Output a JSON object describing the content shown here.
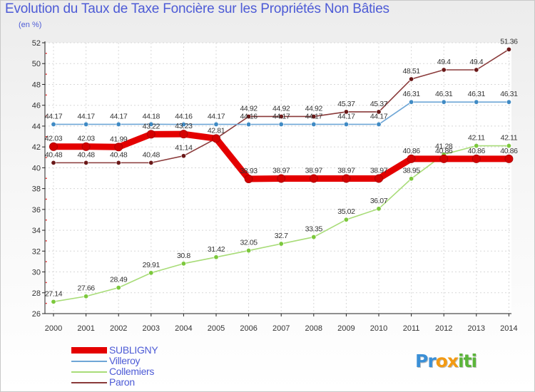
{
  "chart_data": {
    "type": "line",
    "title": "Evolution du Taux de Taxe Foncière sur les Propriétés Non Bâties",
    "subtitle": "(en %)",
    "xlabel": "",
    "ylabel": "(en %)",
    "categories": [
      "2000",
      "2001",
      "2002",
      "2003",
      "2004",
      "2005",
      "2006",
      "2007",
      "2008",
      "2009",
      "2010",
      "2011",
      "2012",
      "2013",
      "2014"
    ],
    "ylim": [
      26,
      52
    ],
    "yticks": [
      26,
      28,
      30,
      32,
      34,
      36,
      38,
      40,
      42,
      44,
      46,
      48,
      50,
      52
    ],
    "grid": true,
    "series": [
      {
        "name": "SUBLIGNY",
        "color": "#e40000",
        "marker_color": "#d40000",
        "values": [
          42.03,
          42.03,
          41.99,
          43.22,
          43.23,
          42.81,
          38.93,
          38.97,
          38.97,
          38.97,
          38.97,
          40.86,
          40.86,
          40.86,
          40.86
        ],
        "labels": [
          "42.03",
          "42.03",
          "41.99",
          "43.22",
          "43.23",
          "42.81",
          "38.93",
          "38.97",
          "38.97",
          "38.97",
          "38.97",
          "40.86",
          "40.86",
          "40.86",
          "40.86"
        ]
      },
      {
        "name": "Villeroy",
        "color": "#6ea6d6",
        "marker_color": "#3f8ac4",
        "values": [
          44.17,
          44.17,
          44.17,
          44.18,
          44.16,
          44.17,
          44.16,
          44.17,
          44.17,
          44.17,
          44.17,
          46.31,
          46.31,
          46.31,
          46.31
        ],
        "labels": [
          "44.17",
          "44.17",
          "44.17",
          "44.18",
          "44.16",
          "44.17",
          "44.16",
          "44.17",
          "44.17",
          "44.17",
          "44.17",
          "46.31",
          "46.31",
          "46.31",
          "46.31"
        ]
      },
      {
        "name": "Collemiers",
        "color": "#a8dc78",
        "marker_color": "#7cc83c",
        "values": [
          27.14,
          27.66,
          28.49,
          29.91,
          30.8,
          31.42,
          32.05,
          32.7,
          33.35,
          35.02,
          36.07,
          38.95,
          41.28,
          42.11,
          42.11
        ],
        "labels": [
          "27.14",
          "27.66",
          "28.49",
          "29.91",
          "30.8",
          "31.42",
          "32.05",
          "32.7",
          "33.35",
          "35.02",
          "36.07",
          "38.95",
          "41.28",
          "42.11",
          "42.11"
        ]
      },
      {
        "name": "Paron",
        "color": "#8a3a3a",
        "marker_color": "#6a1818",
        "values": [
          40.48,
          40.48,
          40.48,
          40.48,
          41.14,
          42.81,
          44.92,
          44.92,
          44.92,
          45.37,
          45.37,
          48.51,
          49.4,
          49.4,
          51.36
        ],
        "labels": [
          "40.48",
          "40.48",
          "40.48",
          "40.48",
          "41.14",
          "",
          "44.92",
          "44.92",
          "44.92",
          "45.37",
          "45.37",
          "48.51",
          "49.4",
          "49.4",
          "51.36"
        ]
      }
    ]
  },
  "logo": {
    "text": "Proxiti",
    "letters": [
      "P",
      "r",
      "o",
      "x",
      "i",
      "t",
      "i"
    ],
    "colors": [
      "#3a8fd6",
      "#3a8fd6",
      "#f39a12",
      "#f39a12",
      "#5bb53a",
      "#5bb53a",
      "#5bb53a"
    ]
  }
}
